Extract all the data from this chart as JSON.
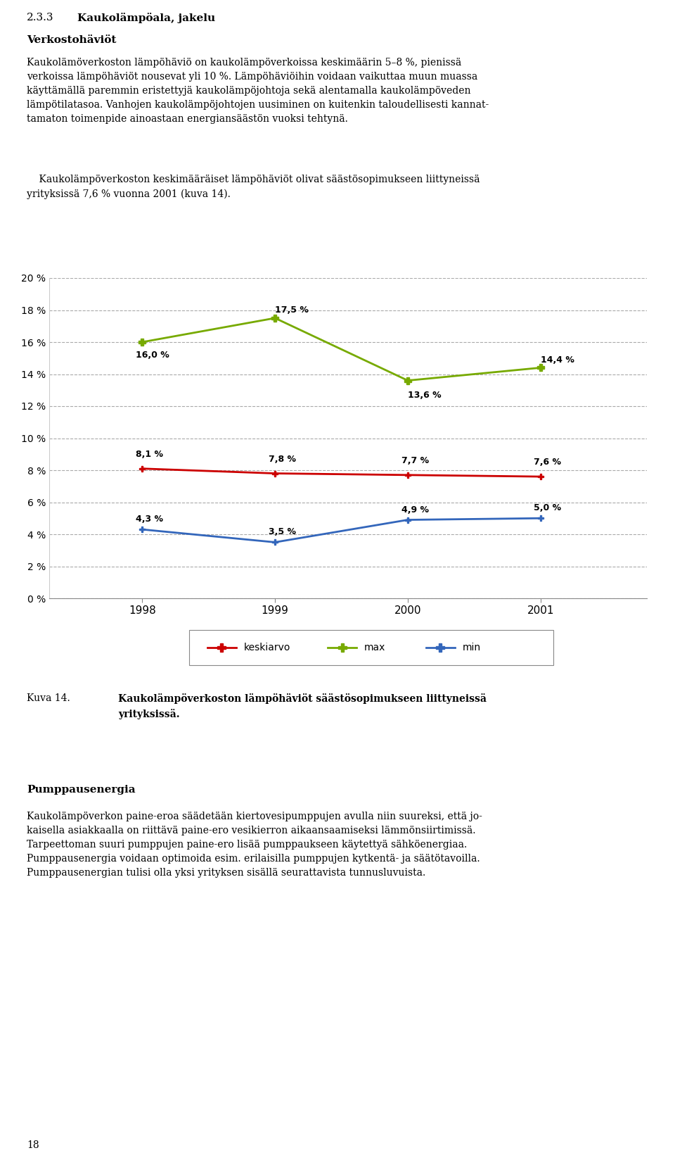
{
  "years": [
    1998,
    1999,
    2000,
    2001
  ],
  "keskiarvo": [
    8.1,
    7.8,
    7.7,
    7.6
  ],
  "max_vals": [
    16.0,
    17.5,
    13.6,
    14.4
  ],
  "min_vals": [
    4.3,
    3.5,
    4.9,
    5.0
  ],
  "keskiarvo_labels": [
    "8,1 %",
    "7,8 %",
    "7,7 %",
    "7,6 %"
  ],
  "max_labels": [
    "16,0 %",
    "17,5 %",
    "13,6 %",
    "14,4 %"
  ],
  "min_labels": [
    "4,3 %",
    "3,5 %",
    "4,9 %",
    "5,0 %"
  ],
  "keskiarvo_color": "#cc0000",
  "max_color": "#77aa00",
  "min_color": "#3366bb",
  "ylim": [
    0,
    20
  ],
  "yticks": [
    0,
    2,
    4,
    6,
    8,
    10,
    12,
    14,
    16,
    18,
    20
  ],
  "ytick_labels": [
    "0 %",
    "2 %",
    "4 %",
    "6 %",
    "8 %",
    "10 %",
    "12 %",
    "14 %",
    "16 %",
    "18 %",
    "20 %"
  ],
  "title_section": "2.3.3",
  "title_bold": "Kaukolämpöala, jakelu",
  "section_title": "Verkostohäviöt",
  "body1_line1": "Kaukolämöverkoston lämpöhäviö on kaukolämpöverkoissa keskimäärin 5–8 %, pienissä",
  "body1_line2": "verkoissa lämpöhäviöt nousevat yli 10 %. Lämpöhäviöihin voidaan vaikuttaa muun muassa",
  "body1_line3": "käyttämällä paremmin eristettyjä kaukolämpöjohtoja sekä alentamalla kaukolämpöveden",
  "body1_line4": "lämpötilatasoa. Vanhojen kaukolämpöjohtojen uusiminen on kuitenkin taloudellisesti kannat-",
  "body1_line5": "tamaton toimenpide ainoastaan energiansäästön vuoksi tehtynä.",
  "body2_line1": "    Kaukolämpöverkoston keskimääräiset lämpöhäviöt olivat säästösopimukseen liittyneissä",
  "body2_line2": "yrityksissä 7,6 % vuonna 2001 (kuva 14).",
  "caption_label": "Kuva 14.",
  "caption_text_line1": "Kaukolämpöverkoston lämpöhäviöt säästösopimukseen liittyneissä",
  "caption_text_line2": "yrityksissä.",
  "pumpp_title": "Pumppausenergia",
  "pumpp_line1": "Kaukolämpöverkon paine-eroa säädetään kiertovesipumppujen avulla niin suureksi, että jo-",
  "pumpp_line2": "kaisella asiakkaalla on riittävä paine-ero vesikierron aikaansaamiseksi lämmönsiirtimissä.",
  "pumpp_line3": "Tarpeettoman suuri pumppujen paine-ero lisää pumppaukseen käytettyä sähköenergiaa.",
  "pumpp_line4": "Pumppausenergia voidaan optimoida esim. erilaisilla pumppujen kytkentä- ja säätötavoilla.",
  "pumpp_line5": "Pumppausenergian tulisi olla yksi yrityksen sisällä seurattavista tunnusluvuista.",
  "page_number": "18"
}
